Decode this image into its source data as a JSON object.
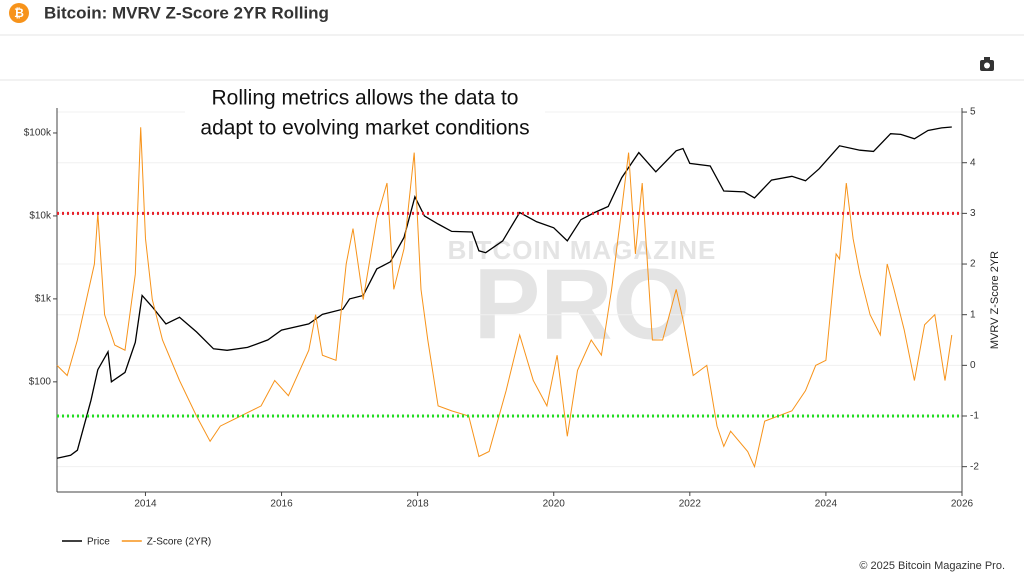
{
  "chart_data": {
    "type": "line",
    "title": "Bitcoin: MVRV Z-Score 2YR Rolling",
    "annotation": [
      "Rolling metrics allows the data to",
      "adapt to evolving market conditions"
    ],
    "watermark": [
      "BITCOIN MAGAZINE",
      "PRO"
    ],
    "y2_label": "MVRV Z-Score 2YR",
    "footer": "© 2025 Bitcoin Magazine Pro.",
    "xlim": [
      2012.7,
      2026
    ],
    "xticks": [
      2014,
      2016,
      2018,
      2020,
      2022,
      2024,
      2026
    ],
    "ylim": [
      4.7,
      200000
    ],
    "ylog": true,
    "yticks": [
      {
        "value": 100,
        "label": "$100"
      },
      {
        "value": 1000,
        "label": "$1k"
      },
      {
        "value": 10000,
        "label": "$10k"
      },
      {
        "value": 100000,
        "label": "$100k"
      }
    ],
    "y2lim": [
      -2.5,
      5.08
    ],
    "y2ticks": [
      -2,
      -1,
      0,
      1,
      2,
      3,
      4,
      5
    ],
    "grid": true,
    "reference_lines": [
      {
        "value": 3,
        "color": "#e8212b"
      },
      {
        "value": -1,
        "color": "#22dd22"
      }
    ],
    "series": [
      {
        "name": "Price",
        "color": "#000000",
        "axis": "y",
        "x": [
          2012.7,
          2012.9,
          2013.0,
          2013.2,
          2013.3,
          2013.45,
          2013.5,
          2013.7,
          2013.85,
          2013.95,
          2014.1,
          2014.3,
          2014.5,
          2014.75,
          2015.0,
          2015.2,
          2015.5,
          2015.8,
          2016.0,
          2016.4,
          2016.6,
          2016.9,
          2017.0,
          2017.2,
          2017.4,
          2017.6,
          2017.8,
          2017.96,
          2018.1,
          2018.3,
          2018.5,
          2018.8,
          2018.9,
          2019.0,
          2019.25,
          2019.5,
          2019.75,
          2020.0,
          2020.2,
          2020.4,
          2020.6,
          2020.8,
          2021.0,
          2021.25,
          2021.5,
          2021.8,
          2021.9,
          2022.0,
          2022.3,
          2022.5,
          2022.8,
          2022.95,
          2023.2,
          2023.5,
          2023.7,
          2023.9,
          2024.2,
          2024.5,
          2024.7,
          2024.95,
          2025.1,
          2025.3,
          2025.5,
          2025.7,
          2025.85
        ],
        "values": [
          12,
          13,
          15,
          60,
          140,
          230,
          100,
          130,
          300,
          1100,
          800,
          500,
          600,
          400,
          250,
          240,
          260,
          320,
          420,
          500,
          650,
          750,
          1000,
          1100,
          2300,
          2800,
          5500,
          17000,
          10000,
          8000,
          6500,
          6400,
          3800,
          3600,
          5000,
          11000,
          8500,
          7200,
          5000,
          9000,
          11000,
          13000,
          29000,
          58000,
          34000,
          61000,
          65000,
          43000,
          40000,
          20000,
          19500,
          16500,
          27000,
          30000,
          26500,
          37000,
          70000,
          62000,
          60000,
          98000,
          96000,
          85000,
          107000,
          115000,
          118000
        ]
      },
      {
        "name": "Z-Score (2YR)",
        "color": "#f7931a",
        "axis": "y2",
        "x": [
          2012.7,
          2012.85,
          2013.0,
          2013.15,
          2013.25,
          2013.3,
          2013.4,
          2013.55,
          2013.7,
          2013.85,
          2013.93,
          2014.0,
          2014.1,
          2014.25,
          2014.5,
          2014.75,
          2014.95,
          2015.1,
          2015.4,
          2015.7,
          2015.9,
          2016.1,
          2016.4,
          2016.5,
          2016.6,
          2016.8,
          2016.95,
          2017.05,
          2017.2,
          2017.4,
          2017.55,
          2017.65,
          2017.8,
          2017.95,
          2018.05,
          2018.15,
          2018.3,
          2018.5,
          2018.75,
          2018.9,
          2019.05,
          2019.3,
          2019.5,
          2019.7,
          2019.9,
          2020.05,
          2020.2,
          2020.35,
          2020.55,
          2020.7,
          2020.85,
          2021.0,
          2021.1,
          2021.2,
          2021.3,
          2021.45,
          2021.6,
          2021.8,
          2021.9,
          2022.05,
          2022.25,
          2022.4,
          2022.5,
          2022.6,
          2022.85,
          2022.95,
          2023.1,
          2023.3,
          2023.5,
          2023.7,
          2023.85,
          2024.0,
          2024.15,
          2024.2,
          2024.3,
          2024.4,
          2024.5,
          2024.65,
          2024.8,
          2024.9,
          2025.0,
          2025.15,
          2025.3,
          2025.45,
          2025.6,
          2025.75,
          2025.85
        ],
        "values": [
          0,
          -0.2,
          0.5,
          1.4,
          2.0,
          3.0,
          1.0,
          0.4,
          0.3,
          1.8,
          4.7,
          2.5,
          1.3,
          0.5,
          -0.3,
          -1.0,
          -1.5,
          -1.2,
          -1.0,
          -0.8,
          -0.3,
          -0.6,
          0.3,
          1.0,
          0.2,
          0.1,
          2.0,
          2.7,
          1.3,
          2.9,
          3.6,
          1.5,
          2.3,
          4.2,
          1.5,
          0.5,
          -0.8,
          -0.9,
          -1.0,
          -1.8,
          -1.7,
          -0.5,
          0.6,
          -0.3,
          -0.8,
          0.2,
          -1.4,
          -0.1,
          0.5,
          0.2,
          1.5,
          3.1,
          4.2,
          2.2,
          3.6,
          0.5,
          0.5,
          1.5,
          0.9,
          -0.2,
          0.0,
          -1.2,
          -1.6,
          -1.3,
          -1.7,
          -2.0,
          -1.1,
          -1.0,
          -0.9,
          -0.5,
          0.0,
          0.1,
          2.2,
          2.1,
          3.6,
          2.5,
          1.8,
          1.0,
          0.6,
          2.0,
          1.5,
          0.7,
          -0.3,
          0.8,
          1.0,
          -0.3,
          0.6
        ]
      }
    ]
  }
}
